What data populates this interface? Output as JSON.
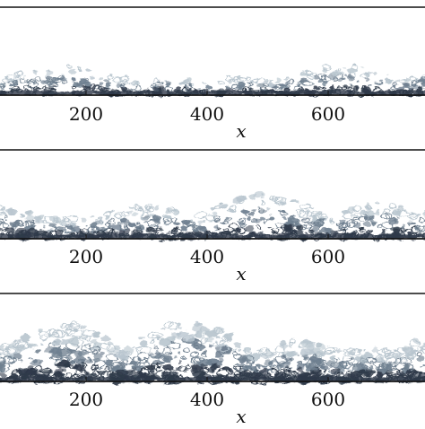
{
  "figure": {
    "panels": [
      {
        "id": "top",
        "xlabel": "x",
        "xticks": [
          "200",
          "400",
          "600"
        ],
        "layer_intensity": 0.35
      },
      {
        "id": "middle",
        "xlabel": "x",
        "xticks": [
          "200",
          "400",
          "600"
        ],
        "layer_intensity": 0.62
      },
      {
        "id": "bottom",
        "xlabel": "x",
        "xticks": [
          "200",
          "400",
          "600"
        ],
        "layer_intensity": 1.0
      }
    ],
    "colors": {
      "frame": "#111111",
      "plume_dark": "#2f3a4a",
      "plume_mid": "#6f8090",
      "plume_light": "#b9c6cf",
      "background": "#ffffff"
    }
  }
}
